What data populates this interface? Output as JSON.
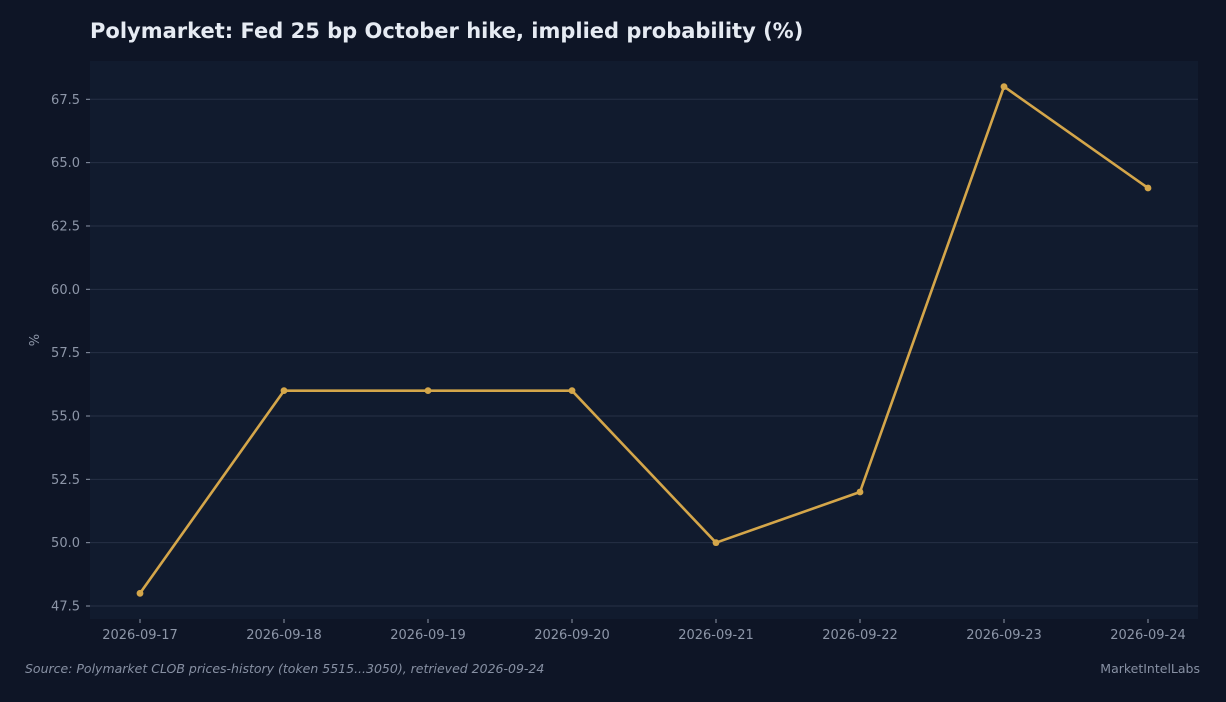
{
  "chart_data": {
    "type": "line",
    "title": "Polymarket: Fed 25 bp October hike, implied probability (%)",
    "xlabel": "",
    "ylabel": "%",
    "categories": [
      "2026-09-17",
      "2026-09-18",
      "2026-09-19",
      "2026-09-20",
      "2026-09-21",
      "2026-09-22",
      "2026-09-23",
      "2026-09-24"
    ],
    "series": [
      {
        "values": [
          48,
          56,
          56,
          56,
          50,
          52,
          68,
          64
        ]
      }
    ],
    "ylim": [
      47,
      69
    ],
    "yticks": [
      47.5,
      50.0,
      52.5,
      55.0,
      57.5,
      60.0,
      62.5,
      65.0,
      67.5
    ],
    "grid": true,
    "legend": "none",
    "colors": {
      "line": "#d4a64a",
      "plot_background": "#111b2e",
      "page_background": "#0e1526",
      "grid": "#263045"
    }
  },
  "footer": {
    "source": "Source: Polymarket CLOB prices-history (token 5515...3050), retrieved 2026-09-24",
    "brand": "MarketIntelLabs"
  }
}
